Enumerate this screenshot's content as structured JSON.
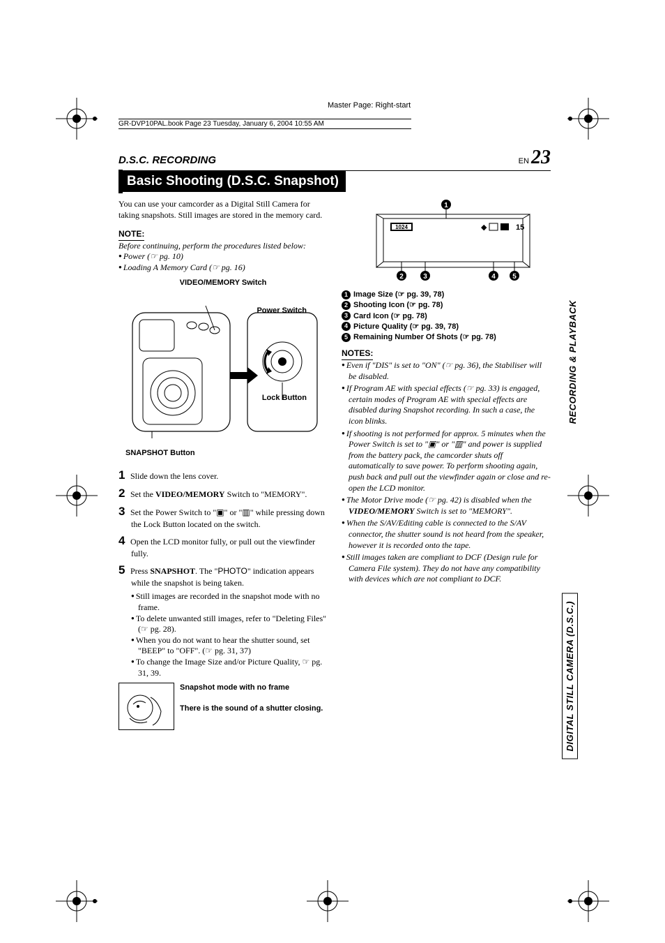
{
  "meta": {
    "master": "Master Page: Right-start",
    "book": "GR-DVP10PAL.book  Page 23  Tuesday, January 6, 2004  10:55 AM"
  },
  "header": {
    "section": "D.S.C. RECORDING",
    "lang": "EN",
    "page": "23"
  },
  "title": "Basic Shooting (D.S.C. Snapshot)",
  "intro": "You can use your camcorder as a Digital Still Camera for taking snapshots. Still images are stored in the memory card.",
  "note_hdr": "NOTE:",
  "note_before": "Before continuing, perform the procedures listed below:",
  "note_items": [
    "Power (☞ pg. 10)",
    "Loading A Memory Card (☞ pg. 16)"
  ],
  "fig": {
    "vm_switch": "VIDEO/MEMORY Switch",
    "power_switch": "Power Switch",
    "lock_button": "Lock Button",
    "snapshot_button": "SNAPSHOT Button"
  },
  "steps": [
    {
      "n": "1",
      "t": "Slide down the lens cover."
    },
    {
      "n": "2",
      "t": "Set the <b>VIDEO/MEMORY</b> Switch to \"MEMORY\"."
    },
    {
      "n": "3",
      "t": "Set the Power Switch to \"▣\" or \"▥\" while pressing down the Lock Button located on the switch."
    },
    {
      "n": "4",
      "t": "Open the LCD monitor fully, or pull out the viewfinder fully."
    },
    {
      "n": "5",
      "t": "Press <b>SNAPSHOT</b>. The \"<span style='font-family:Arial'>PHOTO</span>\" indication appears while the snapshot is being taken."
    }
  ],
  "step5_subs": [
    "Still images are recorded in the snapshot mode with no frame.",
    "To delete unwanted still images, refer to \"Deleting Files\" (☞ pg. 28).",
    "When you do not want to hear the shutter sound, set \"BEEP\" to \"OFF\". (☞ pg. 31, 37)",
    "To change the Image Size and/or Picture Quality, ☞ pg. 31, 39."
  ],
  "snap": {
    "mode": "Snapshot mode with no frame",
    "sound": "There is the sound of a shutter closing."
  },
  "display": {
    "size_label": "1024",
    "shots": "15"
  },
  "refs": [
    {
      "n": "1",
      "t": "Image Size (☞ pg. 39, 78)"
    },
    {
      "n": "2",
      "t": "Shooting Icon (☞ pg. 78)"
    },
    {
      "n": "3",
      "t": "Card Icon (☞ pg. 78)"
    },
    {
      "n": "4",
      "t": "Picture Quality (☞ pg. 39, 78)"
    },
    {
      "n": "5",
      "t": "Remaining Number Of Shots (☞ pg. 78)"
    }
  ],
  "notes_hdr": "NOTES:",
  "notes": [
    "Even if \"DIS\" is set to \"ON\" (☞ pg. 36), the Stabiliser will be disabled.",
    "If Program AE with special effects (☞ pg. 33) is engaged, certain modes of Program AE with special effects are disabled during Snapshot recording. In such a case, the icon blinks.",
    "If shooting is not performed for approx. 5 minutes when the Power Switch is set to \"▣\" or \"▥\" and power is supplied from the battery pack, the camcorder shuts off automatically to save power. To perform shooting again, push back and pull out the viewfinder again or close and re-open the LCD monitor.",
    "The Motor Drive mode (☞ pg. 42) is disabled when the <b>VIDEO/MEMORY</b> Switch is set to \"MEMORY\".",
    "When the S/AV/Editing cable is connected to the S/AV connector, the shutter sound is not heard from the speaker, however it is recorded onto the tape.",
    "Still images taken are compliant to DCF (Design rule for Camera File system). They do not have any compatibility with devices which are not compliant to DCF."
  ],
  "tabs": {
    "top": "RECORDING & PLAYBACK",
    "bottom": "DIGITAL STILL CAMERA (D.S.C.)"
  },
  "colors": {
    "black": "#000000",
    "white": "#ffffff"
  }
}
